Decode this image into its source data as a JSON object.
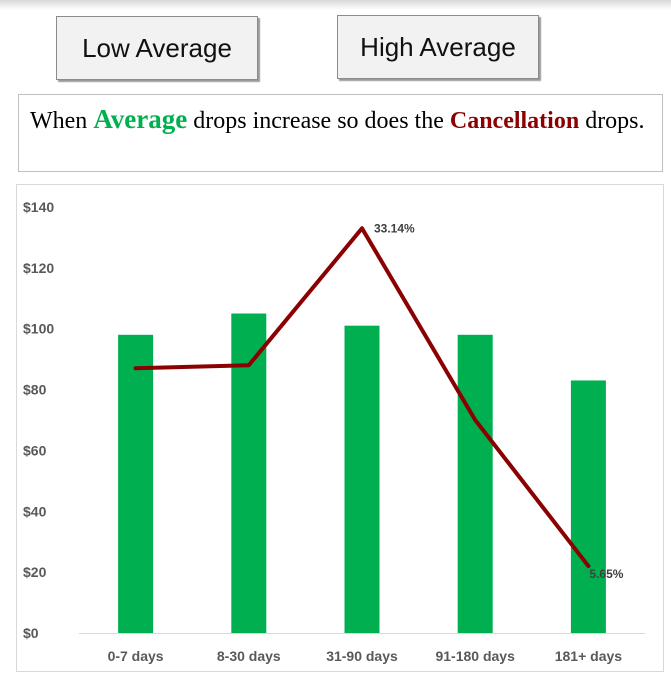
{
  "buttons": {
    "low_label": "Low Average",
    "high_label": "High Average"
  },
  "caption": {
    "part1": "When ",
    "highlight1": "Average",
    "part2": " drops increase so does the ",
    "highlight2": "Cancellation",
    "part3": " drops."
  },
  "colors": {
    "bar": "#00b050",
    "line": "#8b0000",
    "highlight_green": "#00b050",
    "highlight_red": "#8b0000"
  },
  "chart_data": {
    "type": "bar",
    "categories": [
      "0-7 days",
      "8-30 days",
      "31-90 days",
      "91-180 days",
      "181+ days"
    ],
    "series": [
      {
        "type": "bar",
        "values": [
          98,
          105,
          101,
          98,
          83
        ]
      },
      {
        "type": "line",
        "values": [
          87,
          88,
          133,
          70,
          22
        ],
        "data_labels": [
          "",
          "",
          "33.14%",
          "",
          "5.65%"
        ]
      }
    ],
    "yticks": [
      "$0",
      "$20",
      "$40",
      "$60",
      "$80",
      "$100",
      "$120",
      "$140"
    ],
    "ylim": [
      0,
      140
    ],
    "grid": false,
    "legend": "none"
  }
}
